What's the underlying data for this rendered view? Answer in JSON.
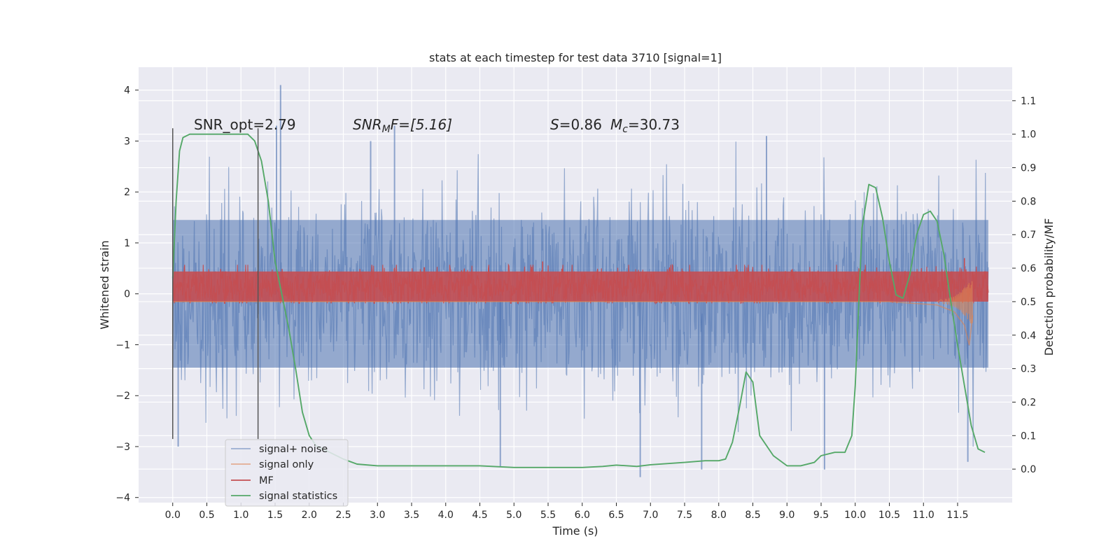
{
  "chart_data": {
    "type": "line",
    "title": "stats at each timestep for test data 3710 [signal=1]",
    "xlabel": "Time (s)",
    "ylabel": "Whitened strain",
    "y2label": "Detection probability/MF",
    "xlim": [
      -0.5,
      12.3
    ],
    "ylim": [
      -4.1,
      4.45
    ],
    "y2lim": [
      -0.1,
      1.2
    ],
    "x_ticks": [
      "0.0",
      "0.5",
      "1.0",
      "1.5",
      "2.0",
      "2.5",
      "3.0",
      "3.5",
      "4.0",
      "4.5",
      "5.0",
      "5.5",
      "6.0",
      "6.5",
      "7.0",
      "7.5",
      "8.0",
      "8.5",
      "9.0",
      "9.5",
      "10.0",
      "10.5",
      "11.0",
      "11.5"
    ],
    "y_ticks": [
      "4",
      "3",
      "2",
      "1",
      "0",
      "−1",
      "−2",
      "−3",
      "−4"
    ],
    "y2_ticks": [
      "1.1",
      "1.0",
      "0.9",
      "0.8",
      "0.7",
      "0.6",
      "0.5",
      "0.4",
      "0.3",
      "0.2",
      "0.1",
      "0.0"
    ],
    "grid": true,
    "legend_placement": "lower-left",
    "annotations": {
      "snr_opt": "SNR_opt=2.79",
      "snr_mf_prefix": "SNR",
      "snr_mf_sub": "M",
      "snr_mf_rest": "F=[5.16]",
      "s_var": "S",
      "s_value": "=0.86",
      "mc_var": "M",
      "mc_sub": "c",
      "mc_value": "=30.73"
    },
    "vlines_x": [
      0.0,
      1.25
    ],
    "series": [
      {
        "name": "signal+ noise",
        "color": "#4c72b0",
        "axis": "left",
        "kind": "noise-band",
        "x_range": [
          0.0,
          11.95
        ],
        "band_core": [
          -1.45,
          1.45
        ],
        "peak_extremes": [
          {
            "x": 1.58,
            "y": 4.1
          },
          {
            "x": 1.52,
            "y": 3.3
          },
          {
            "x": 3.25,
            "y": 3.3
          },
          {
            "x": 2.9,
            "y": 3.0
          },
          {
            "x": 8.7,
            "y": 3.1
          },
          {
            "x": 0.08,
            "y": -3.0
          },
          {
            "x": 4.8,
            "y": -3.4
          },
          {
            "x": 6.85,
            "y": -3.6
          },
          {
            "x": 7.75,
            "y": -3.45
          },
          {
            "x": 9.55,
            "y": -3.45
          },
          {
            "x": 11.65,
            "y": -3.3
          }
        ]
      },
      {
        "name": "signal only",
        "color": "#dd8452",
        "axis": "right",
        "kind": "chirp",
        "points": [
          {
            "x": 0.0,
            "y": 0.5
          },
          {
            "x": 10.5,
            "y": 0.5
          },
          {
            "x": 11.2,
            "y": 0.49
          },
          {
            "x": 11.45,
            "y": 0.47
          },
          {
            "x": 11.6,
            "y": 0.43
          },
          {
            "x": 11.67,
            "y": 0.37
          },
          {
            "x": 11.72,
            "y": 0.46
          }
        ]
      },
      {
        "name": "MF",
        "color": "#c44e52",
        "axis": "right",
        "kind": "noise-band",
        "x_range": [
          0.0,
          11.95
        ],
        "band_core": [
          0.5,
          0.59
        ],
        "peak_extremes": [
          {
            "x": 5.42,
            "y": 0.62
          },
          {
            "x": 11.6,
            "y": 0.63
          }
        ]
      },
      {
        "name": "signal statistics",
        "color": "#55a868",
        "axis": "right",
        "kind": "line",
        "x": [
          0.0,
          0.05,
          0.1,
          0.15,
          0.25,
          0.4,
          0.6,
          0.8,
          1.0,
          1.1,
          1.2,
          1.3,
          1.4,
          1.5,
          1.6,
          1.7,
          1.8,
          1.9,
          2.0,
          2.1,
          2.2,
          2.3,
          2.5,
          2.7,
          3.0,
          3.5,
          4.0,
          4.5,
          5.0,
          5.5,
          6.0,
          6.3,
          6.5,
          6.8,
          7.0,
          7.5,
          7.8,
          8.0,
          8.1,
          8.2,
          8.3,
          8.4,
          8.5,
          8.6,
          8.8,
          9.0,
          9.2,
          9.4,
          9.5,
          9.7,
          9.85,
          9.95,
          10.0,
          10.1,
          10.2,
          10.3,
          10.4,
          10.5,
          10.6,
          10.7,
          10.8,
          10.9,
          11.0,
          11.1,
          11.2,
          11.3,
          11.4,
          11.5,
          11.6,
          11.7,
          11.8,
          11.9
        ],
        "y": [
          0.57,
          0.8,
          0.95,
          0.99,
          1.0,
          1.0,
          1.0,
          1.0,
          1.0,
          1.0,
          0.98,
          0.92,
          0.8,
          0.62,
          0.52,
          0.42,
          0.3,
          0.17,
          0.1,
          0.07,
          0.06,
          0.05,
          0.03,
          0.015,
          0.01,
          0.01,
          0.01,
          0.01,
          0.005,
          0.005,
          0.005,
          0.008,
          0.012,
          0.008,
          0.013,
          0.02,
          0.025,
          0.025,
          0.03,
          0.08,
          0.18,
          0.29,
          0.26,
          0.1,
          0.04,
          0.01,
          0.01,
          0.02,
          0.04,
          0.05,
          0.05,
          0.1,
          0.25,
          0.72,
          0.85,
          0.84,
          0.75,
          0.62,
          0.52,
          0.51,
          0.58,
          0.7,
          0.76,
          0.77,
          0.74,
          0.64,
          0.5,
          0.37,
          0.25,
          0.13,
          0.06,
          0.05
        ]
      }
    ]
  }
}
